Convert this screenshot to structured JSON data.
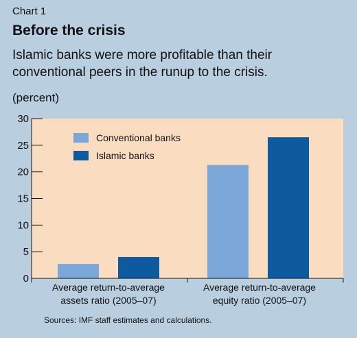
{
  "header": {
    "label": "Chart 1",
    "title": "Before the crisis",
    "subtitle": "Islamic banks were more profitable than their conventional peers in the runup to the crisis.",
    "unit": "(percent)"
  },
  "source": "Sources: IMF staff estimates and calculations.",
  "colors": {
    "background": "#b9cfe0",
    "plot_area": "#fadcc0",
    "conventional": "#7ba7d9",
    "islamic": "#0e5a9e"
  },
  "chart_data": {
    "type": "bar",
    "title": "Before the crisis",
    "ylabel": "(percent)",
    "ylim": [
      0,
      30
    ],
    "yticks": [
      0,
      5,
      10,
      15,
      20,
      25,
      30
    ],
    "grid": false,
    "legend_position": "top-left",
    "categories": [
      [
        "Average return-to-average",
        "assets ratio (2005–07)"
      ],
      [
        "Average return-to-average",
        "equity ratio (2005–07)"
      ]
    ],
    "series": [
      {
        "name": "Conventional banks",
        "values": [
          2.7,
          21.3
        ]
      },
      {
        "name": "Islamic banks",
        "values": [
          4.0,
          26.5
        ]
      }
    ]
  }
}
